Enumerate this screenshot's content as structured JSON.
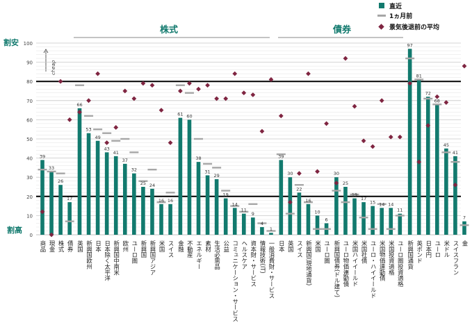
{
  "legend": {
    "current": "直近",
    "month_ago": "1ヵ月前",
    "recession_avg": "景気後退前の平均"
  },
  "groups": {
    "equity": "株式",
    "bond": "債券"
  },
  "labels": {
    "cheap_end": "割安",
    "expensive_end": "割高",
    "cheap_arrow": "cheap"
  },
  "colors": {
    "current": "#127a6e",
    "month_ago": "#a6a6a6",
    "recession_avg": "#7f2541",
    "group_title": "#127a6e",
    "reference_line": "#000000"
  },
  "chart_data": {
    "type": "bar",
    "ylim": [
      0,
      100
    ],
    "yticks": [
      0,
      10,
      20,
      30,
      40,
      50,
      60,
      70,
      80,
      90,
      100
    ],
    "reference_lines": [
      20,
      80
    ],
    "categories": [
      "商品",
      "現金",
      "株式",
      "債券",
      "英国",
      "新興国欧州",
      "日本",
      "日本除く太平洋",
      "新興国中南米",
      "欧州",
      "ユーロ圏",
      "新興国",
      "新興国アジア",
      "米国",
      "スイス",
      "金融",
      "不動産",
      "エネルギー",
      "素材",
      "生活必需品",
      "公益",
      "コミュニケーション・サービス",
      "ヘルスケア",
      "資本財・サービス",
      "情報技術(IT)",
      "一般消費財・サービス",
      "日本",
      "英国",
      "スイス",
      "新興国(現地通貨)",
      "米国",
      "ユーロ圏",
      "新興国債券(ドル建て)",
      "ユーロ物価連動債",
      "米国ハイイールド",
      "米国社債",
      "ユーロ・ハイイールド",
      "米国物価連動債",
      "米国投資適格",
      "ユーロ圏投資適格",
      "新興国通貨",
      "英ポンド",
      "日本円",
      "ユーロ",
      "米ドル",
      "スイスフラン",
      "金"
    ],
    "series": [
      {
        "name": "直近",
        "values": [
          39,
          33,
          26,
          17,
          66,
          53,
          49,
          43,
          41,
          37,
          32,
          25,
          24,
          16,
          16,
          61,
          60,
          38,
          31,
          29,
          19,
          14,
          11,
          9,
          4,
          1,
          39,
          30,
          22,
          16,
          10,
          6,
          30,
          25,
          19,
          17,
          15,
          14,
          14,
          11,
          97,
          81,
          72,
          68,
          45,
          41,
          7
        ]
      },
      {
        "name": "1ヵ月前",
        "values": [
          34,
          33,
          32,
          7,
          78,
          62,
          55,
          53,
          49,
          50,
          43,
          28,
          34,
          17,
          22,
          78,
          74,
          50,
          37,
          35,
          23,
          15,
          12,
          16,
          6,
          2,
          42,
          11,
          26,
          17,
          3,
          3,
          23,
          17,
          21,
          9,
          3,
          16,
          3,
          10,
          92,
          81,
          71,
          68,
          43,
          38,
          5
        ]
      },
      {
        "name": "景気後退前の平均",
        "values": [
          12,
          0,
          80,
          60,
          64,
          70,
          84,
          48,
          56,
          75,
          71,
          79,
          78,
          65,
          48,
          75,
          79,
          76,
          78,
          71,
          71,
          84,
          74,
          73,
          54,
          81,
          62,
          17,
          32,
          84,
          33,
          58,
          27,
          92,
          67,
          49,
          46,
          70,
          51,
          51,
          79,
          38,
          57,
          72,
          69,
          26,
          88
        ]
      }
    ],
    "value_labels": [
      "39",
      "33",
      "26",
      "17",
      "66",
      "53",
      "49",
      "43",
      "41",
      "37",
      "32",
      "25",
      "24",
      "16",
      "16",
      "61",
      "60",
      "38",
      "31",
      "29",
      "19",
      "14",
      "11",
      "9",
      "4",
      "1",
      "39",
      "30",
      "22",
      "16",
      "10",
      "6",
      "30",
      "25",
      "19",
      "17",
      "15",
      "14",
      "14",
      "11",
      "97",
      "81",
      "72",
      "68",
      "45",
      "41",
      "7"
    ]
  }
}
